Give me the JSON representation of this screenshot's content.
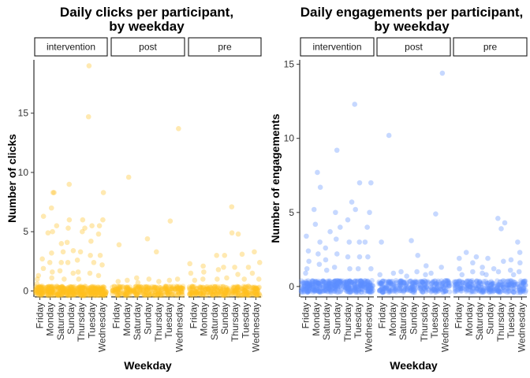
{
  "chart_data": [
    {
      "type": "scatter",
      "title_lines": [
        "Daily clicks per participant,",
        "by weekday"
      ],
      "xlabel": "Weekday",
      "ylabel": "Number of clicks",
      "color": "#FFBF1F",
      "ylim": [
        -0.5,
        19.5
      ],
      "yticks": [
        0,
        5,
        10,
        15
      ],
      "categories": [
        "Friday",
        "Monday",
        "Saturday",
        "Sunday",
        "Thursday",
        "Tuesday",
        "Wednesday"
      ],
      "facets": [
        {
          "label": "intervention",
          "points": [
            [
              0,
              6.3
            ],
            [
              0,
              2.7
            ],
            [
              0,
              1.9
            ],
            [
              0,
              1.3
            ],
            [
              0,
              1.0
            ],
            [
              0,
              0.6
            ],
            [
              1,
              5.0
            ],
            [
              1,
              8.3
            ],
            [
              1,
              8.3
            ],
            [
              1,
              7.0
            ],
            [
              1,
              4.9
            ],
            [
              1,
              3.2
            ],
            [
              1,
              2.4
            ],
            [
              1,
              1.6
            ],
            [
              1,
              1.1
            ],
            [
              2,
              5.5
            ],
            [
              2,
              4.0
            ],
            [
              2,
              3.3
            ],
            [
              2,
              2.4
            ],
            [
              2,
              1.7
            ],
            [
              2,
              1.0
            ],
            [
              3,
              9.0
            ],
            [
              3,
              6.0
            ],
            [
              3,
              5.3
            ],
            [
              3,
              4.1
            ],
            [
              3,
              3.4
            ],
            [
              3,
              2.4
            ],
            [
              3,
              1.5
            ],
            [
              4,
              6.0
            ],
            [
              4,
              5.3
            ],
            [
              4,
              5.0
            ],
            [
              4,
              3.3
            ],
            [
              4,
              2.6
            ],
            [
              4,
              1.6
            ],
            [
              4,
              1.0
            ],
            [
              5,
              19.0
            ],
            [
              5,
              14.7
            ],
            [
              5,
              5.5
            ],
            [
              5,
              4.2
            ],
            [
              5,
              3.0
            ],
            [
              5,
              2.4
            ],
            [
              5,
              1.5
            ],
            [
              6,
              8.3
            ],
            [
              6,
              6.0
            ],
            [
              6,
              5.5
            ],
            [
              6,
              4.8
            ],
            [
              6,
              3.0
            ],
            [
              6,
              2.2
            ],
            [
              6,
              1.3
            ]
          ]
        },
        {
          "label": "post",
          "points": [
            [
              0,
              3.9
            ],
            [
              0,
              0.8
            ],
            [
              1,
              9.6
            ],
            [
              1,
              0.9
            ],
            [
              2,
              1.1
            ],
            [
              2,
              0.7
            ],
            [
              3,
              4.4
            ],
            [
              3,
              1.0
            ],
            [
              4,
              3.3
            ],
            [
              4,
              0.8
            ],
            [
              5,
              5.9
            ],
            [
              5,
              0.9
            ],
            [
              6,
              13.7
            ],
            [
              6,
              1.0
            ]
          ]
        },
        {
          "label": "pre",
          "points": [
            [
              0,
              2.3
            ],
            [
              0,
              1.5
            ],
            [
              0,
              0.9
            ],
            [
              1,
              2.1
            ],
            [
              1,
              1.6
            ],
            [
              1,
              1.0
            ],
            [
              2,
              3.0
            ],
            [
              2,
              1.8
            ],
            [
              2,
              1.0
            ],
            [
              3,
              3.0
            ],
            [
              3,
              2.0
            ],
            [
              3,
              1.1
            ],
            [
              4,
              7.1
            ],
            [
              4,
              4.9
            ],
            [
              4,
              4.8
            ],
            [
              4,
              2.0
            ],
            [
              4,
              1.4
            ],
            [
              5,
              3.1
            ],
            [
              5,
              2.0
            ],
            [
              5,
              1.0
            ],
            [
              6,
              3.3
            ],
            [
              6,
              2.4
            ],
            [
              6,
              1.5
            ],
            [
              6,
              1.0
            ]
          ]
        }
      ]
    },
    {
      "type": "scatter",
      "title_lines": [
        "Daily engagements per participant,",
        "by weekday"
      ],
      "xlabel": "Weekday",
      "ylabel": "Number of engagements",
      "color": "#5C8FFF",
      "ylim": [
        -0.7,
        15.3
      ],
      "yticks": [
        0,
        5,
        10,
        15
      ],
      "categories": [
        "Friday",
        "Monday",
        "Saturday",
        "Sunday",
        "Thursday",
        "Tuesday",
        "Wednesday"
      ],
      "facets": [
        {
          "label": "intervention",
          "points": [
            [
              0,
              3.4
            ],
            [
              0,
              2.4
            ],
            [
              0,
              1.7
            ],
            [
              0,
              1.2
            ],
            [
              0,
              0.9
            ],
            [
              1,
              7.7
            ],
            [
              1,
              6.7
            ],
            [
              1,
              5.2
            ],
            [
              1,
              4.2
            ],
            [
              1,
              3.0
            ],
            [
              1,
              2.2
            ],
            [
              1,
              1.5
            ],
            [
              2,
              3.7
            ],
            [
              2,
              2.6
            ],
            [
              2,
              1.8
            ],
            [
              2,
              1.1
            ],
            [
              3,
              9.2
            ],
            [
              3,
              5.0
            ],
            [
              3,
              4.0
            ],
            [
              3,
              3.2
            ],
            [
              3,
              2.2
            ],
            [
              3,
              1.3
            ],
            [
              4,
              5.7
            ],
            [
              4,
              4.5
            ],
            [
              4,
              3.0
            ],
            [
              4,
              2.0
            ],
            [
              4,
              1.2
            ],
            [
              5,
              12.3
            ],
            [
              5,
              7.0
            ],
            [
              5,
              5.2
            ],
            [
              5,
              3.0
            ],
            [
              5,
              2.0
            ],
            [
              5,
              1.2
            ],
            [
              6,
              7.0
            ],
            [
              6,
              5.0
            ],
            [
              6,
              4.0
            ],
            [
              6,
              3.0
            ],
            [
              6,
              2.0
            ],
            [
              6,
              1.2
            ]
          ]
        },
        {
          "label": "post",
          "points": [
            [
              0,
              3.0
            ],
            [
              0,
              0.8
            ],
            [
              1,
              10.2
            ],
            [
              1,
              0.9
            ],
            [
              2,
              1.0
            ],
            [
              2,
              0.7
            ],
            [
              3,
              3.1
            ],
            [
              3,
              2.1
            ],
            [
              3,
              1.0
            ],
            [
              4,
              1.4
            ],
            [
              4,
              0.8
            ],
            [
              5,
              4.9
            ],
            [
              5,
              0.9
            ],
            [
              6,
              14.4
            ],
            [
              6,
              1.3
            ]
          ]
        },
        {
          "label": "pre",
          "points": [
            [
              0,
              1.9
            ],
            [
              0,
              1.2
            ],
            [
              0,
              0.8
            ],
            [
              1,
              2.3
            ],
            [
              1,
              1.6
            ],
            [
              1,
              1.0
            ],
            [
              2,
              2.0
            ],
            [
              2,
              1.3
            ],
            [
              2,
              0.9
            ],
            [
              3,
              1.9
            ],
            [
              3,
              1.2
            ],
            [
              3,
              0.8
            ],
            [
              4,
              4.6
            ],
            [
              4,
              4.3
            ],
            [
              4,
              3.9
            ],
            [
              4,
              1.7
            ],
            [
              4,
              1.0
            ],
            [
              5,
              1.8
            ],
            [
              5,
              1.1
            ],
            [
              5,
              0.8
            ],
            [
              6,
              3.0
            ],
            [
              6,
              2.3
            ],
            [
              6,
              1.6
            ],
            [
              6,
              1.0
            ]
          ]
        }
      ]
    }
  ]
}
